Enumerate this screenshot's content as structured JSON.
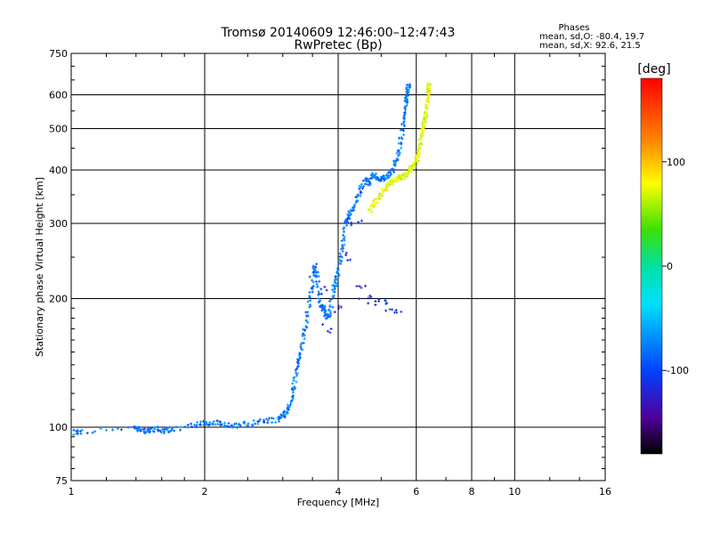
{
  "chart_data": {
    "type": "scatter",
    "title": "Tromsø 20140609 12:46:00–12:47:43",
    "subtitle": "RwPretec (Bp)",
    "legend_title": "Phases",
    "legend_lines": [
      "mean, sd,O: -80.4, 19.7",
      "mean, sd,X: 92.6, 21.5"
    ],
    "xlabel": "Frequency [MHz]",
    "ylabel": "Stationary phase Virtual Height [km]",
    "x_scale": "log",
    "y_scale": "log",
    "xlim": [
      1,
      16
    ],
    "ylim": [
      75,
      750
    ],
    "x_ticks": [
      1,
      2,
      4,
      6,
      8,
      10,
      16
    ],
    "x_tick_labels": [
      "1",
      "2",
      "4",
      "6",
      "8",
      "10",
      "16"
    ],
    "y_ticks": [
      75,
      100,
      200,
      300,
      400,
      500,
      600,
      750
    ],
    "y_tick_labels": [
      "75",
      "100",
      "200",
      "300",
      "400",
      "500",
      "600",
      "750"
    ],
    "grid": true,
    "colorbar": {
      "label": "[deg]",
      "range": [
        -180,
        180
      ],
      "ticks": [
        100,
        0,
        -100
      ],
      "tick_labels": [
        "100",
        "0",
        "-100"
      ]
    },
    "series": [
      {
        "name": "O",
        "phase_mean": -80.4,
        "phase_sd": 19.7,
        "x": [
          1.02,
          1.05,
          1.38,
          1.42,
          1.47,
          1.5,
          1.56,
          1.62,
          1.7,
          1.9,
          2.0,
          2.1,
          2.2,
          2.35,
          2.5,
          2.7,
          2.9,
          3.0,
          3.05,
          3.1,
          3.15,
          3.2,
          3.25,
          3.3,
          3.35,
          3.4,
          3.45,
          3.5,
          3.55,
          3.6,
          3.65,
          3.7,
          3.75,
          3.8,
          3.85,
          3.9,
          3.95,
          4.0,
          4.05,
          4.1,
          4.15,
          4.2,
          4.3,
          4.4,
          4.5,
          4.6,
          4.7,
          4.8,
          4.9,
          5.0,
          5.1,
          5.2,
          5.3,
          5.4,
          5.5,
          5.6,
          5.65,
          5.7,
          5.72,
          5.75,
          5.78
        ],
        "y": [
          97,
          98,
          99,
          99,
          98,
          98,
          99,
          98,
          99,
          101,
          102,
          103,
          101,
          101,
          102,
          103,
          104,
          106,
          109,
          112,
          120,
          130,
          140,
          150,
          165,
          180,
          200,
          220,
          240,
          215,
          195,
          190,
          185,
          180,
          192,
          210,
          220,
          230,
          250,
          270,
          300,
          310,
          320,
          340,
          360,
          380,
          370,
          390,
          385,
          380,
          385,
          390,
          400,
          420,
          450,
          500,
          540,
          580,
          600,
          620,
          640
        ],
        "scatter_x": [
          3.5,
          3.7,
          4.0,
          4.2,
          4.4,
          4.6,
          4.8,
          5.0,
          5.2,
          5.4,
          3.8,
          4.5
        ],
        "scatter_y": [
          230,
          210,
          190,
          250,
          300,
          200,
          197,
          195,
          190,
          185,
          170,
          215
        ]
      },
      {
        "name": "X",
        "phase_mean": 92.6,
        "phase_sd": 21.5,
        "x": [
          4.7,
          4.8,
          4.9,
          5.0,
          5.1,
          5.2,
          5.3,
          5.4,
          5.5,
          5.6,
          5.7,
          5.8,
          5.9,
          6.0,
          6.05,
          6.1,
          6.15,
          6.2,
          6.25,
          6.3,
          6.35,
          6.38,
          6.4,
          6.42
        ],
        "y": [
          320,
          330,
          340,
          350,
          360,
          370,
          375,
          380,
          385,
          385,
          390,
          400,
          410,
          420,
          430,
          450,
          480,
          500,
          520,
          540,
          570,
          600,
          620,
          640
        ]
      }
    ]
  }
}
